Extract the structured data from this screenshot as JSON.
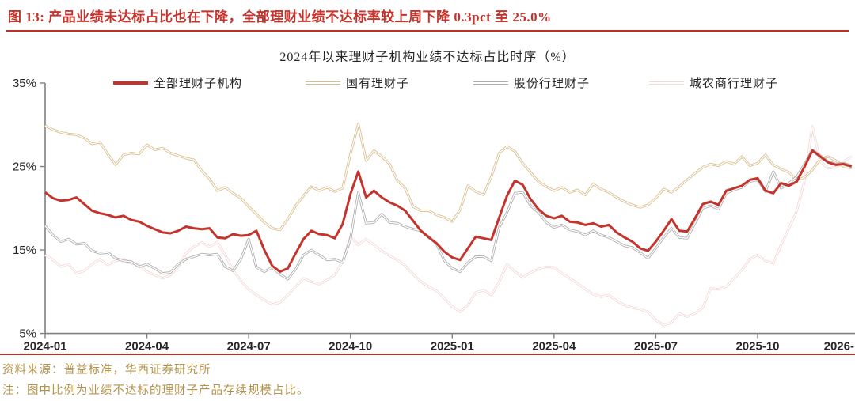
{
  "figure_title": "图 13:  产品业绩未达标占比也在下降，全部理财业绩不达标率较上周下降 0.3pct 至 25.0%",
  "footer": {
    "source": "资料来源：普益标准，华西证券研究所",
    "note": "注：图中比例为业绩不达标的理财子产品存续规模占比。"
  },
  "colors": {
    "title_red": "#c5342c",
    "rule_red": "#bf2f28",
    "footer_gold": "#b6934a",
    "axis": "#808080",
    "text": "#262626",
    "series_red": "#c5342c",
    "series_gold": "#d9bd8c",
    "series_gray": "#adadad",
    "series_pink": "#f4d8d7"
  },
  "chart_data": {
    "type": "line",
    "title": "2024年以来理财子机构业绩不达标占比时序（%）",
    "xlabel": "",
    "ylabel": "",
    "ylim": [
      5,
      35
    ],
    "grid": false,
    "legend_position": "top",
    "x_unit": "weeks since 2024-01",
    "x_tick_labels": [
      "2024-01",
      "2024-04",
      "2024-07",
      "2024-10",
      "2025-01",
      "2025-04",
      "2025-07",
      "2025-10",
      "2026-"
    ],
    "x_tick_weeks": [
      0,
      13,
      26,
      39,
      52,
      65,
      78,
      91,
      104
    ],
    "y_tick_labels": [
      "35%",
      "25%",
      "15%",
      "5%"
    ],
    "y_tick_values": [
      35,
      25,
      15,
      5
    ],
    "series": [
      {
        "name": "城农商行理财子",
        "style": "outlined",
        "color": "#f4d8d7",
        "values": [
          14.4,
          13.8,
          13.0,
          13.3,
          12.2,
          12.5,
          13.3,
          13.9,
          13.2,
          13.7,
          13.9,
          13.4,
          13.2,
          12.4,
          12.0,
          11.6,
          12.0,
          13.0,
          14.6,
          15.4,
          15.9,
          15.4,
          15.9,
          14.4,
          12.6,
          11.3,
          10.3,
          9.6,
          9.0,
          8.5,
          8.7,
          9.6,
          10.6,
          11.6,
          11.2,
          10.9,
          11.4,
          12.0,
          13.6,
          16.6,
          15.6,
          16.3,
          15.6,
          14.9,
          14.3,
          13.8,
          13.1,
          12.1,
          11.2,
          10.6,
          10.1,
          9.2,
          8.2,
          7.6,
          8.4,
          9.9,
          10.2,
          9.6,
          11.2,
          13.3,
          12.4,
          11.7,
          12.3,
          12.7,
          13.0,
          12.9,
          12.2,
          11.6,
          11.0,
          10.3,
          9.7,
          9.4,
          9.6,
          8.9,
          8.4,
          8.1,
          7.9,
          7.6,
          6.6,
          6.0,
          6.3,
          7.4,
          7.0,
          7.4,
          8.1,
          10.4,
          10.3,
          10.6,
          11.6,
          12.6,
          13.9,
          14.4,
          13.7,
          13.4,
          15.6,
          17.6,
          19.7,
          23.3,
          29.8,
          25.6,
          24.8,
          24.9,
          25.6,
          26.2
        ]
      },
      {
        "name": "国有理财子",
        "style": "outlined",
        "color": "#d9bd8c",
        "values": [
          29.9,
          29.4,
          29.1,
          28.9,
          28.8,
          28.4,
          27.7,
          27.9,
          26.5,
          25.2,
          26.4,
          26.6,
          26.5,
          27.6,
          27.0,
          27.2,
          26.6,
          26.3,
          26.0,
          25.8,
          24.5,
          23.5,
          22.1,
          22.5,
          21.8,
          21.2,
          20.2,
          19.3,
          18.3,
          17.6,
          17.4,
          18.7,
          20.3,
          21.5,
          22.6,
          22.1,
          22.5,
          22.0,
          22.4,
          26.5,
          30.1,
          25.7,
          26.9,
          26.2,
          25.3,
          23.3,
          22.4,
          20.2,
          19.7,
          19.7,
          19.2,
          18.9,
          18.4,
          19.8,
          22.7,
          22.0,
          21.6,
          23.8,
          26.6,
          27.4,
          26.8,
          25.4,
          24.3,
          23.2,
          22.6,
          22.1,
          22.5,
          21.9,
          22.2,
          21.6,
          22.9,
          22.3,
          21.9,
          21.3,
          20.8,
          20.4,
          20.1,
          20.4,
          21.2,
          22.3,
          21.9,
          22.6,
          23.4,
          24.2,
          24.9,
          25.3,
          25.1,
          25.6,
          25.3,
          26.2,
          25.1,
          25.4,
          26.4,
          25.2,
          24.7,
          24.3,
          23.4,
          23.7,
          24.6,
          25.9,
          26.2,
          25.7,
          25.0,
          24.8
        ]
      },
      {
        "name": "股份行理财子",
        "style": "outlined",
        "color": "#adadad",
        "values": [
          17.9,
          16.8,
          16.0,
          16.3,
          15.7,
          15.8,
          14.9,
          14.6,
          14.7,
          14.0,
          13.7,
          13.6,
          13.0,
          13.3,
          12.8,
          12.2,
          12.3,
          13.3,
          13.9,
          14.2,
          14.5,
          14.4,
          14.5,
          13.0,
          12.5,
          13.9,
          16.3,
          12.9,
          12.4,
          12.9,
          12.1,
          11.5,
          12.7,
          14.4,
          15.0,
          14.4,
          13.8,
          13.9,
          13.5,
          16.3,
          21.9,
          18.2,
          18.3,
          19.3,
          18.3,
          18.2,
          17.8,
          17.5,
          17.3,
          16.6,
          15.7,
          13.7,
          12.8,
          12.4,
          13.5,
          14.2,
          14.2,
          13.7,
          17.7,
          19.5,
          21.8,
          21.9,
          20.3,
          19.5,
          18.3,
          17.7,
          18.0,
          17.4,
          17.2,
          16.8,
          17.3,
          16.8,
          16.5,
          16.0,
          15.5,
          15.3,
          14.7,
          14.0,
          15.2,
          16.5,
          17.6,
          16.5,
          16.4,
          18.2,
          20.0,
          20.3,
          19.9,
          21.8,
          22.2,
          22.5,
          23.2,
          23.4,
          22.0,
          24.4,
          22.4,
          23.0,
          23.8,
          25.3,
          27.0,
          26.3,
          25.6,
          25.3,
          25.4,
          25.1
        ]
      },
      {
        "name": "全部理财子机构",
        "style": "solid",
        "color": "#c5342c",
        "values": [
          21.9,
          21.2,
          20.9,
          21.0,
          21.3,
          20.5,
          19.7,
          19.4,
          19.2,
          18.9,
          19.1,
          18.6,
          18.4,
          17.9,
          17.5,
          17.1,
          17.0,
          17.3,
          17.8,
          17.6,
          17.5,
          17.6,
          16.5,
          16.4,
          16.9,
          16.7,
          16.8,
          17.3,
          15.0,
          13.1,
          12.4,
          12.8,
          14.6,
          16.3,
          17.3,
          16.9,
          16.8,
          16.4,
          18.1,
          21.7,
          24.4,
          21.3,
          22.1,
          21.3,
          20.7,
          20.3,
          19.7,
          18.5,
          17.3,
          16.5,
          15.8,
          14.8,
          14.1,
          13.8,
          15.2,
          16.6,
          16.4,
          16.2,
          18.9,
          21.5,
          23.3,
          22.8,
          21.1,
          19.9,
          19.1,
          18.8,
          19.1,
          18.4,
          18.3,
          18.0,
          18.2,
          17.8,
          18.0,
          17.1,
          16.5,
          16.0,
          15.2,
          14.9,
          16.0,
          17.3,
          18.7,
          17.3,
          17.2,
          18.8,
          20.5,
          20.8,
          20.4,
          22.1,
          22.4,
          22.7,
          23.4,
          23.6,
          22.1,
          21.8,
          23.0,
          22.7,
          23.2,
          25.0,
          26.9,
          26.2,
          25.5,
          25.2,
          25.3,
          25.0
        ]
      }
    ],
    "legend_order": [
      "全部理财子机构",
      "国有理财子",
      "股份行理财子",
      "城农商行理财子"
    ]
  }
}
